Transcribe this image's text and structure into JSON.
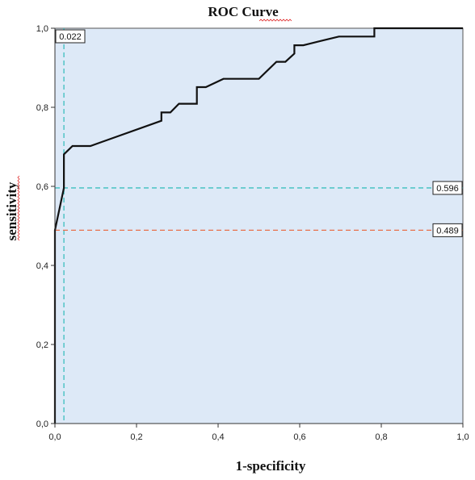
{
  "chart_data": {
    "type": "line",
    "title": "ROC Curve",
    "xlabel": "1-specificity",
    "ylabel": "sensitivity",
    "xlim": [
      0,
      1
    ],
    "ylim": [
      0,
      1
    ],
    "x_ticks": [
      "0,0",
      "0,2",
      "0,4",
      "0,6",
      "0,8",
      "1,0"
    ],
    "y_ticks": [
      "0,0",
      "0,2",
      "0,4",
      "0,6",
      "0,8",
      "1,0"
    ],
    "grid": false,
    "background": "#dde9f7",
    "series": [
      {
        "color": "#111111",
        "points": [
          [
            0.0,
            0.0
          ],
          [
            0.0,
            0.489
          ],
          [
            0.022,
            0.596
          ],
          [
            0.022,
            0.681
          ],
          [
            0.043,
            0.702
          ],
          [
            0.087,
            0.702
          ],
          [
            0.261,
            0.766
          ],
          [
            0.261,
            0.787
          ],
          [
            0.283,
            0.787
          ],
          [
            0.304,
            0.809
          ],
          [
            0.348,
            0.809
          ],
          [
            0.348,
            0.851
          ],
          [
            0.37,
            0.851
          ],
          [
            0.413,
            0.872
          ],
          [
            0.5,
            0.872
          ],
          [
            0.543,
            0.915
          ],
          [
            0.565,
            0.915
          ],
          [
            0.587,
            0.936
          ],
          [
            0.587,
            0.957
          ],
          [
            0.609,
            0.957
          ],
          [
            0.652,
            0.968
          ],
          [
            0.696,
            0.979
          ],
          [
            0.783,
            0.979
          ],
          [
            0.783,
            1.0
          ],
          [
            1.0,
            1.0
          ]
        ]
      }
    ],
    "reference_lines": [
      {
        "orientation": "vertical",
        "value": 0.022,
        "label": "0.022",
        "color": "#3bbfbf"
      },
      {
        "orientation": "horizontal",
        "value": 0.596,
        "label": "0.596",
        "color": "#3bbfbf"
      },
      {
        "orientation": "horizontal",
        "value": 0.489,
        "label": "0.489",
        "color": "#e8704a"
      }
    ]
  }
}
